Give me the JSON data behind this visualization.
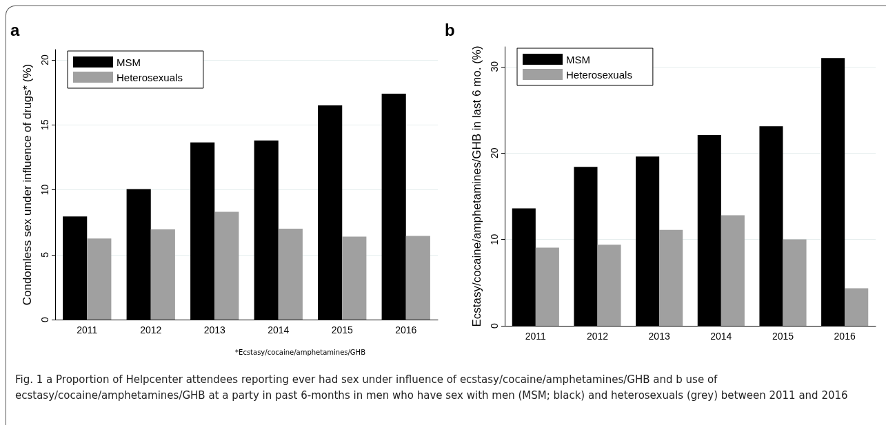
{
  "chart_data": [
    {
      "type": "bar",
      "title": "a",
      "ylabel": "Condomless sex under influence of drugs* (%)",
      "categories": [
        "2011",
        "2012",
        "2013",
        "2014",
        "2015",
        "2016"
      ],
      "series": [
        {
          "name": "MSM",
          "color": "#000000",
          "values": [
            7.95,
            10.05,
            13.65,
            13.8,
            16.5,
            17.4
          ]
        },
        {
          "name": "Heterosexuals",
          "color": "#a0a0a0",
          "values": [
            6.25,
            6.95,
            8.3,
            7.0,
            6.4,
            6.45
          ]
        }
      ],
      "ylim": [
        0,
        20.8
      ],
      "yticks": [
        0,
        5,
        10,
        15,
        20
      ],
      "grid": "y",
      "legend": "top left",
      "annotations": [
        "*Ecstasy/cocaine/amphetamines/GHB"
      ]
    },
    {
      "type": "bar",
      "title": "b",
      "ylabel": "Ecstasy/cocaine/amphetamines/GHB in last 6 mo. (%)",
      "categories": [
        "2011",
        "2012",
        "2013",
        "2014",
        "2015",
        "2016"
      ],
      "series": [
        {
          "name": "MSM",
          "color": "#000000",
          "values": [
            13.6,
            18.4,
            19.6,
            22.1,
            23.1,
            31.0
          ]
        },
        {
          "name": "Heterosexuals",
          "color": "#a0a0a0",
          "values": [
            9.05,
            9.4,
            11.1,
            12.8,
            10.0,
            4.35
          ]
        }
      ],
      "ylim": [
        0,
        32.3
      ],
      "yticks": [
        0,
        10,
        20,
        30
      ],
      "grid": "y",
      "legend": "top left",
      "annotations": [
        "Fig. 1 a Proportion of Helpcenter attendees reporting ever had sex under influence of ecstasy/cocaine/amphetamines/GHB and b use of ecstasy/cocaine/amphetamines/GHB at a party in past 6-months in men who have sex with men (MSM; black) and heterosexuals (grey) between 2011 and 2016"
      ]
    }
  ]
}
